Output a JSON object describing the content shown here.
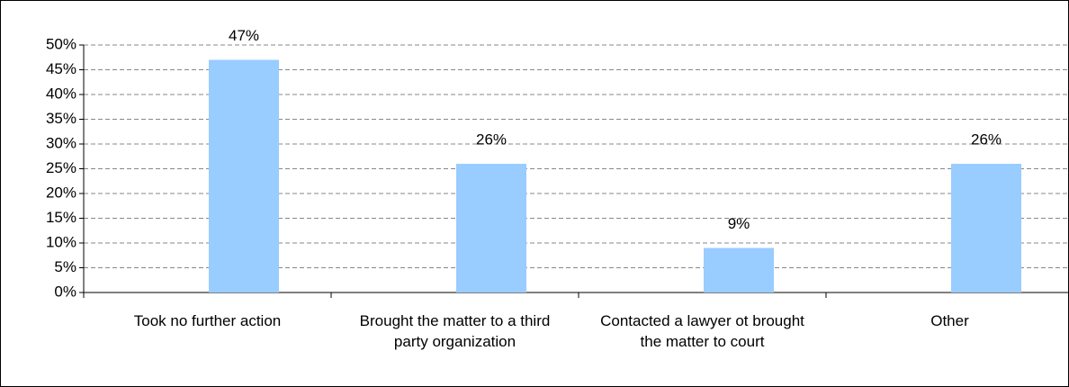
{
  "chart_data": {
    "type": "bar",
    "categories": [
      "Took no further action",
      "Brought the matter to a third party organization",
      "Contacted a lawyer ot brought the matter to court",
      "Other"
    ],
    "values": [
      47,
      26,
      9,
      26
    ],
    "value_labels": [
      "47%",
      "26%",
      "9%",
      "26%"
    ],
    "color": "#99ccff",
    "ylim": [
      0,
      50
    ],
    "yticks": [
      {
        "value": 0,
        "label": "0%"
      },
      {
        "value": 5,
        "label": "5%"
      },
      {
        "value": 10,
        "label": "10%"
      },
      {
        "value": 15,
        "label": "15%"
      },
      {
        "value": 20,
        "label": "20%"
      },
      {
        "value": 25,
        "label": "25%"
      },
      {
        "value": 30,
        "label": "30%"
      },
      {
        "value": 35,
        "label": "35%"
      },
      {
        "value": 40,
        "label": "40%"
      },
      {
        "value": 45,
        "label": "45%"
      },
      {
        "value": 50,
        "label": "50%"
      }
    ],
    "grid": true
  }
}
